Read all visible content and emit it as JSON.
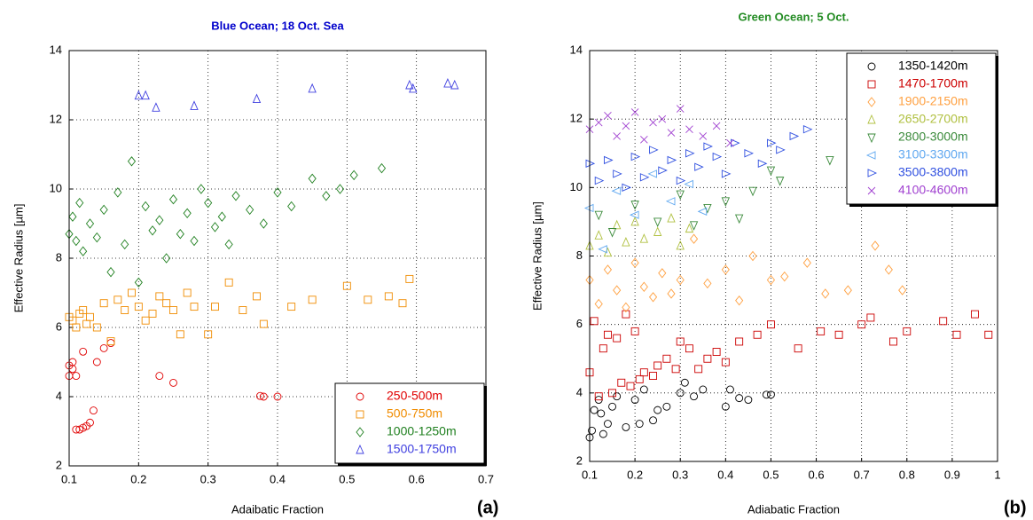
{
  "chart_data": [
    {
      "type": "scatter",
      "title": "Blue Ocean; 18 Oct. Sea",
      "title_color": "#0000cc",
      "x_label": "Adaibatic Fraction",
      "y_label": "Effective Radius [µm]",
      "panel_label": "(a)",
      "xlim": [
        0.1,
        0.7
      ],
      "ylim": [
        2,
        14
      ],
      "xticks": [
        0.1,
        0.2,
        0.3,
        0.4,
        0.5,
        0.6,
        0.7
      ],
      "yticks": [
        2,
        4,
        6,
        8,
        10,
        12,
        14
      ],
      "grid": true,
      "legend_position": "lower right",
      "series": [
        {
          "name": "250-500m",
          "color": "#e00000",
          "marker": "circle",
          "x": [
            0.1,
            0.105,
            0.11,
            0.115,
            0.12,
            0.125,
            0.13,
            0.135,
            0.1,
            0.105,
            0.11,
            0.12,
            0.14,
            0.15,
            0.16,
            0.23,
            0.25,
            0.375,
            0.38,
            0.4
          ],
          "values": [
            4.6,
            4.8,
            3.05,
            3.05,
            3.1,
            3.15,
            3.25,
            3.6,
            4.9,
            5.0,
            4.6,
            5.3,
            5.0,
            5.4,
            5.55,
            4.6,
            4.4,
            4.02,
            4.0,
            4.0
          ]
        },
        {
          "name": "500-750m",
          "color": "#f08c00",
          "marker": "square",
          "x": [
            0.1,
            0.105,
            0.11,
            0.115,
            0.12,
            0.125,
            0.13,
            0.14,
            0.15,
            0.16,
            0.17,
            0.18,
            0.19,
            0.2,
            0.21,
            0.22,
            0.23,
            0.24,
            0.25,
            0.26,
            0.27,
            0.28,
            0.3,
            0.31,
            0.33,
            0.35,
            0.37,
            0.38,
            0.42,
            0.45,
            0.5,
            0.53,
            0.56,
            0.58,
            0.59
          ],
          "values": [
            6.3,
            6.2,
            6.0,
            6.4,
            6.5,
            6.1,
            6.3,
            6.0,
            6.7,
            5.6,
            6.8,
            6.5,
            7.0,
            6.6,
            6.2,
            6.4,
            6.9,
            6.7,
            6.5,
            5.8,
            7.0,
            6.6,
            5.8,
            6.6,
            7.3,
            6.5,
            6.9,
            6.1,
            6.6,
            6.8,
            7.2,
            6.8,
            6.9,
            6.7,
            7.4
          ]
        },
        {
          "name": "1000-1250m",
          "color": "#208020",
          "marker": "diamond",
          "x": [
            0.1,
            0.105,
            0.11,
            0.115,
            0.12,
            0.13,
            0.14,
            0.15,
            0.16,
            0.17,
            0.18,
            0.19,
            0.2,
            0.21,
            0.22,
            0.23,
            0.24,
            0.25,
            0.26,
            0.27,
            0.28,
            0.29,
            0.3,
            0.31,
            0.32,
            0.33,
            0.34,
            0.36,
            0.38,
            0.4,
            0.42,
            0.45,
            0.47,
            0.49,
            0.51,
            0.55
          ],
          "values": [
            8.7,
            9.2,
            8.5,
            9.6,
            8.2,
            9.0,
            8.6,
            9.4,
            7.6,
            9.9,
            8.4,
            10.8,
            7.3,
            9.5,
            8.8,
            9.1,
            8.0,
            9.7,
            8.7,
            9.3,
            8.5,
            10.0,
            9.6,
            8.9,
            9.2,
            8.4,
            9.8,
            9.4,
            9.0,
            9.9,
            9.5,
            10.3,
            9.8,
            10.0,
            10.4,
            10.6
          ]
        },
        {
          "name": "1500-1750m",
          "color": "#4040e0",
          "marker": "triangle-up",
          "x": [
            0.2,
            0.21,
            0.225,
            0.28,
            0.37,
            0.45,
            0.59,
            0.595,
            0.645,
            0.655
          ],
          "values": [
            12.7,
            12.7,
            12.35,
            12.4,
            12.6,
            12.9,
            13.0,
            12.9,
            13.05,
            13.0
          ]
        }
      ]
    },
    {
      "type": "scatter",
      "title": "Green Ocean; 5 Oct.",
      "title_color": "#228b22",
      "x_label": "Adiabatic Fraction",
      "y_label": "Effective Radius [µm]",
      "panel_label": "(b)",
      "xlim": [
        0.1,
        1
      ],
      "ylim": [
        2,
        14
      ],
      "xticks": [
        0.1,
        0.2,
        0.3,
        0.4,
        0.5,
        0.6,
        0.7,
        0.8,
        0.9,
        1
      ],
      "yticks": [
        2,
        4,
        6,
        8,
        10,
        12,
        14
      ],
      "grid": true,
      "legend_position": "upper right",
      "series": [
        {
          "name": "1350-1420m",
          "color": "#000000",
          "marker": "circle",
          "x": [
            0.1,
            0.105,
            0.11,
            0.12,
            0.125,
            0.13,
            0.14,
            0.15,
            0.16,
            0.18,
            0.2,
            0.21,
            0.22,
            0.24,
            0.25,
            0.27,
            0.3,
            0.31,
            0.33,
            0.35,
            0.4,
            0.41,
            0.43,
            0.45,
            0.49,
            0.5
          ],
          "values": [
            2.7,
            2.9,
            3.5,
            3.8,
            3.4,
            2.8,
            3.1,
            3.6,
            3.9,
            3.0,
            3.8,
            3.1,
            4.1,
            3.2,
            3.5,
            3.6,
            4.0,
            4.3,
            3.9,
            4.1,
            3.6,
            4.1,
            3.85,
            3.8,
            3.95,
            3.95
          ]
        },
        {
          "name": "1470-1700m",
          "color": "#cc0000",
          "marker": "square",
          "x": [
            0.1,
            0.11,
            0.12,
            0.13,
            0.14,
            0.15,
            0.16,
            0.17,
            0.18,
            0.19,
            0.2,
            0.21,
            0.22,
            0.24,
            0.25,
            0.27,
            0.29,
            0.3,
            0.32,
            0.34,
            0.36,
            0.38,
            0.4,
            0.43,
            0.47,
            0.5,
            0.56,
            0.61,
            0.65,
            0.7,
            0.72,
            0.77,
            0.8,
            0.88,
            0.91,
            0.95,
            0.98
          ],
          "values": [
            4.6,
            6.1,
            3.9,
            5.3,
            5.7,
            4.0,
            5.6,
            4.3,
            6.3,
            4.2,
            5.8,
            4.4,
            4.6,
            4.5,
            4.8,
            5.0,
            4.7,
            5.5,
            5.3,
            4.7,
            5.0,
            5.2,
            4.9,
            5.5,
            5.7,
            6.0,
            5.3,
            5.8,
            5.7,
            6.0,
            6.2,
            5.5,
            5.8,
            6.1,
            5.7,
            6.3,
            5.7
          ]
        },
        {
          "name": "1900-2150m",
          "color": "#ffa040",
          "marker": "diamond",
          "x": [
            0.1,
            0.12,
            0.14,
            0.16,
            0.18,
            0.2,
            0.22,
            0.24,
            0.26,
            0.28,
            0.3,
            0.33,
            0.36,
            0.4,
            0.43,
            0.46,
            0.5,
            0.53,
            0.58,
            0.62,
            0.67,
            0.73,
            0.76,
            0.79
          ],
          "values": [
            7.3,
            6.6,
            7.6,
            7.0,
            6.5,
            7.8,
            7.1,
            6.8,
            7.5,
            6.9,
            7.3,
            8.5,
            7.2,
            7.6,
            6.7,
            8.0,
            7.3,
            7.4,
            7.8,
            6.9,
            7.0,
            8.3,
            7.6,
            7.0
          ]
        },
        {
          "name": "2650-2700m",
          "color": "#b0c040",
          "marker": "triangle-up",
          "x": [
            0.1,
            0.12,
            0.14,
            0.16,
            0.18,
            0.2,
            0.22,
            0.25,
            0.28,
            0.3,
            0.32
          ],
          "values": [
            8.3,
            8.6,
            8.1,
            8.9,
            8.4,
            9.0,
            8.5,
            8.7,
            9.1,
            8.3,
            8.8
          ]
        },
        {
          "name": "2800-3000m",
          "color": "#3a8a3a",
          "marker": "triangle-down",
          "x": [
            0.12,
            0.15,
            0.2,
            0.25,
            0.3,
            0.33,
            0.36,
            0.4,
            0.43,
            0.46,
            0.5,
            0.52,
            0.63
          ],
          "values": [
            9.2,
            8.7,
            9.5,
            9.0,
            9.8,
            8.9,
            9.4,
            9.6,
            9.1,
            9.9,
            10.5,
            10.2,
            10.8
          ]
        },
        {
          "name": "3100-3300m",
          "color": "#60a8f0",
          "marker": "triangle-left",
          "x": [
            0.1,
            0.13,
            0.16,
            0.2,
            0.24,
            0.28,
            0.32,
            0.35
          ],
          "values": [
            9.4,
            8.2,
            9.9,
            9.2,
            10.4,
            9.6,
            10.1,
            9.3
          ]
        },
        {
          "name": "3500-3800m",
          "color": "#3050e0",
          "marker": "triangle-right",
          "x": [
            0.1,
            0.12,
            0.14,
            0.16,
            0.18,
            0.2,
            0.22,
            0.24,
            0.26,
            0.28,
            0.3,
            0.32,
            0.34,
            0.36,
            0.38,
            0.4,
            0.42,
            0.45,
            0.48,
            0.5,
            0.52,
            0.55,
            0.58
          ],
          "values": [
            10.7,
            10.2,
            10.8,
            10.4,
            10.0,
            10.9,
            10.3,
            11.1,
            10.5,
            10.8,
            10.2,
            11.0,
            10.6,
            11.2,
            10.9,
            10.4,
            11.3,
            11.0,
            10.7,
            11.3,
            11.1,
            11.5,
            11.7
          ]
        },
        {
          "name": "4100-4600m",
          "color": "#a040d0",
          "marker": "x",
          "x": [
            0.1,
            0.12,
            0.14,
            0.16,
            0.18,
            0.2,
            0.22,
            0.24,
            0.26,
            0.28,
            0.3,
            0.32,
            0.35,
            0.38,
            0.41
          ],
          "values": [
            11.7,
            11.9,
            12.1,
            11.5,
            11.8,
            12.2,
            11.4,
            11.9,
            12.0,
            11.6,
            12.3,
            11.7,
            11.5,
            11.8,
            11.3
          ]
        }
      ]
    }
  ]
}
